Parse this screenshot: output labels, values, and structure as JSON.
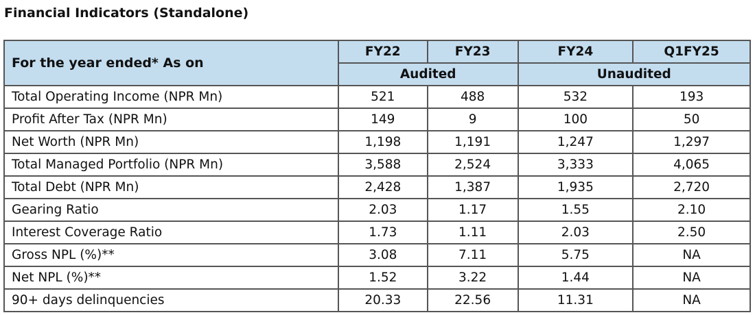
{
  "title": "Financial Indicators (Standalone)",
  "header": {
    "label": "For the year ended* As on",
    "periods": [
      "FY22",
      "FY23",
      "FY24",
      "Q1FY25"
    ],
    "groups": [
      "Audited",
      "Unaudited"
    ]
  },
  "rows": [
    {
      "label": "Total Operating Income (NPR Mn)",
      "values": [
        "521",
        "488",
        "532",
        "193"
      ]
    },
    {
      "label": "Profit After Tax (NPR Mn)",
      "values": [
        "149",
        "9",
        "100",
        "50"
      ]
    },
    {
      "label": "Net Worth (NPR Mn)",
      "values": [
        "1,198",
        "1,191",
        "1,247",
        "1,297"
      ]
    },
    {
      "label": "Total Managed Portfolio (NPR Mn)",
      "values": [
        "3,588",
        "2,524",
        "3,333",
        "4,065"
      ]
    },
    {
      "label": "Total Debt (NPR Mn)",
      "values": [
        "2,428",
        "1,387",
        "1,935",
        "2,720"
      ]
    },
    {
      "label": "Gearing Ratio",
      "values": [
        "2.03",
        "1.17",
        "1.55",
        "2.10"
      ]
    },
    {
      "label": "Interest Coverage Ratio",
      "values": [
        "1.73",
        "1.11",
        "2.03",
        "2.50"
      ]
    },
    {
      "label": "Gross NPL (%)**",
      "values": [
        "3.08",
        "7.11",
        "5.75",
        "NA"
      ]
    },
    {
      "label": "Net NPL (%)**",
      "values": [
        "1.52",
        "3.22",
        "1.44",
        "NA"
      ]
    },
    {
      "label": "90+ days delinquencies",
      "values": [
        "20.33",
        "22.56",
        "11.31",
        "NA"
      ]
    }
  ]
}
